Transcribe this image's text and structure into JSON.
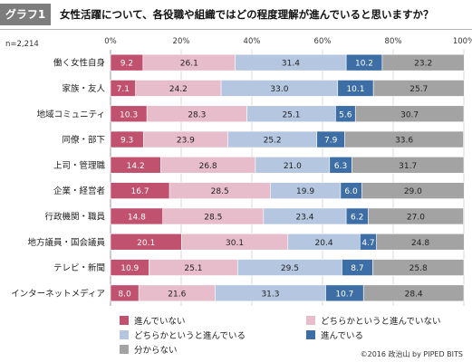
{
  "header": {
    "badge": "グラフ1",
    "title": "女性活躍について、各役職や組織ではどの程度理解が進んでいると思いますか？"
  },
  "sample": "n=2,214",
  "footer": "©2016 政治山 by PIPED BITS",
  "chart_data": {
    "type": "bar",
    "orientation": "horizontal",
    "stacked": true,
    "percent_scale": true,
    "xlim": [
      0,
      100
    ],
    "x_ticks": [
      "0%",
      "20%",
      "40%",
      "60%",
      "80%",
      "100%"
    ],
    "categories": [
      "働く女性自身",
      "家族・友人",
      "地域コミュニティ",
      "同僚・部下",
      "上司・管理職",
      "企業・経営者",
      "行政機関・職員",
      "地方議員・国会議員",
      "テレビ・新聞",
      "インターネットメディア"
    ],
    "series": [
      {
        "name": "進んでいない",
        "color": "#c0516f",
        "text_color": "#ffffff",
        "values": [
          9.2,
          7.1,
          10.3,
          9.3,
          14.2,
          16.7,
          14.8,
          20.1,
          10.9,
          8.0
        ]
      },
      {
        "name": "どちらかというと進んでいない",
        "color": "#e7bccb",
        "text_color": "#222222",
        "values": [
          26.1,
          24.2,
          28.3,
          23.9,
          26.8,
          28.5,
          28.5,
          30.1,
          25.1,
          21.6
        ]
      },
      {
        "name": "どちらかというと進んでいる",
        "color": "#b5c7e0",
        "text_color": "#222222",
        "values": [
          31.4,
          33.0,
          25.1,
          25.2,
          21.0,
          19.9,
          23.4,
          20.4,
          29.5,
          31.3
        ]
      },
      {
        "name": "進んでいる",
        "color": "#3d6ea5",
        "text_color": "#ffffff",
        "values": [
          10.2,
          10.1,
          5.6,
          7.9,
          6.3,
          6.0,
          6.2,
          4.7,
          8.7,
          10.7
        ]
      },
      {
        "name": "分からない",
        "color": "#a3a3a3",
        "text_color": "#222222",
        "values": [
          23.2,
          25.7,
          30.7,
          33.6,
          31.7,
          29.0,
          27.0,
          24.8,
          25.8,
          28.4
        ]
      }
    ],
    "legend_position": "bottom",
    "grid": true
  }
}
